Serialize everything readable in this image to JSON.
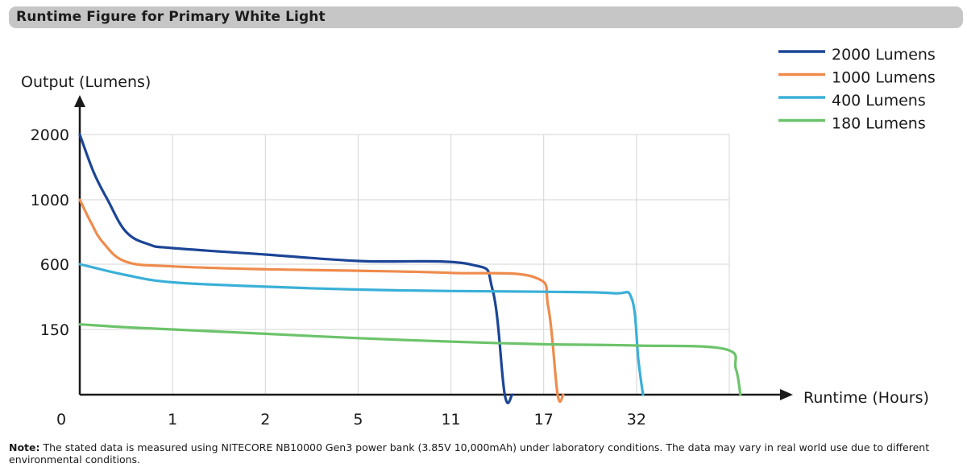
{
  "header": {
    "title": "Runtime Figure for Primary White Light"
  },
  "note": {
    "label": "Note:",
    "text": "The stated data is measured using NITECORE NB10000 Gen3 power bank (3.85V 10,000mAh) under laboratory conditions. The data may vary in real world use due to different environmental conditions."
  },
  "colors": {
    "2000 Lumens": "#1c4596",
    "1000 Lumens": "#ef8b4c",
    "400 Lumens": "#3ab0d8",
    "180 Lumens": "#6cc36a",
    "grid": "#d4d4d4",
    "axis": "#1a1a1a"
  },
  "chart_data": {
    "type": "line",
    "title": "",
    "xlabel": "Runtime (Hours)",
    "ylabel": "Output (Lumens)",
    "x_ticks": [
      "0",
      "1",
      "2",
      "5",
      "11",
      "17",
      "32"
    ],
    "y_ticks": [
      "150",
      "600",
      "1000",
      "2000"
    ],
    "x_scale": "categorical (non-linear) hour marks",
    "y_scale": "categorical (non-linear) lumen marks",
    "grid": true,
    "legend_position": "top-right",
    "series": [
      {
        "name": "2000 Lumens",
        "x": [
          0,
          0.15,
          0.3,
          0.5,
          0.75,
          1,
          2,
          3,
          4.2,
          4.45,
          4.58,
          4.66
        ],
        "y": [
          2000,
          1420,
          1000,
          800,
          722,
          700,
          660,
          620,
          600,
          420,
          0,
          0
        ]
      },
      {
        "name": "1000 Lumens",
        "x": [
          0,
          0.12,
          0.25,
          0.5,
          1,
          2,
          3,
          4,
          4.9,
          5.05,
          5.15,
          5.21
        ],
        "y": [
          1000,
          860,
          735,
          615,
          585,
          565,
          555,
          540,
          510,
          300,
          0,
          0
        ]
      },
      {
        "name": "400 Lumens",
        "x": [
          0,
          0.5,
          1,
          2,
          3,
          4,
          5,
          5.75,
          5.95,
          6.02,
          6.07
        ],
        "y": [
          600,
          525,
          475,
          445,
          425,
          415,
          410,
          400,
          360,
          80,
          0
        ]
      },
      {
        "name": "180 Lumens",
        "x": [
          0,
          0.5,
          1,
          2,
          3,
          4,
          5,
          6,
          6.95,
          7.07,
          7.12
        ],
        "y": [
          185,
          165,
          150,
          140,
          130,
          122,
          116,
          113,
          105,
          60,
          0
        ]
      }
    ]
  }
}
